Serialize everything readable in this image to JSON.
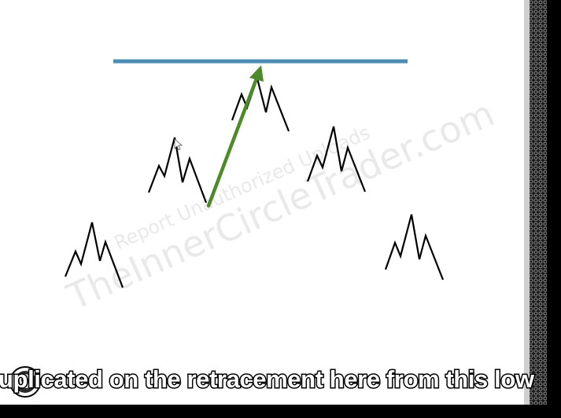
{
  "watermark": {
    "main": "TheInnerCircleTrader.com",
    "sub": "Report Unauthorized Uploads"
  },
  "caption": {
    "text": "uplicated on the retracement here from this low"
  },
  "colors": {
    "slide_background": "#ffffff",
    "resistance_line": "#4e8db3",
    "arrow": "#4c8a2a",
    "swing_stroke": "#000000",
    "caption_text": "#ffffff",
    "video_letterbox": "#000000"
  },
  "icons": [
    "ict-logo-icon",
    "swing-zigzag-icon",
    "up-arrow-icon"
  ]
}
